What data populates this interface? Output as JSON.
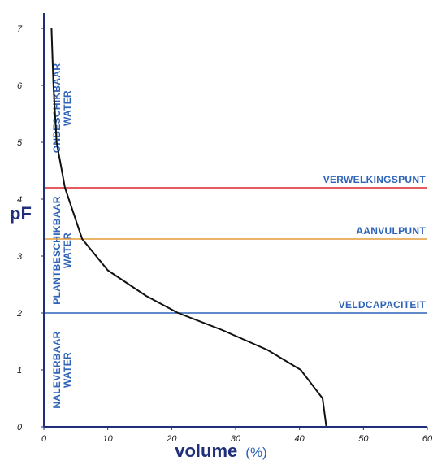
{
  "chart_data": {
    "type": "line",
    "ylabel": "pF",
    "xlabel": "volume",
    "xlabel_unit": "(%)",
    "xlim": [
      0,
      60
    ],
    "ylim": [
      0,
      7
    ],
    "xticks": [
      0,
      10,
      20,
      30,
      40,
      50,
      60
    ],
    "yticks": [
      0,
      1,
      2,
      3,
      4,
      5,
      6,
      7
    ],
    "grid": false,
    "series": [
      {
        "color": "#111111",
        "points": [
          [
            44.2,
            0.0
          ],
          [
            43.6,
            0.5
          ],
          [
            40.2,
            1.0
          ],
          [
            35.0,
            1.35
          ],
          [
            27.9,
            1.7
          ],
          [
            21.0,
            2.0
          ],
          [
            16.0,
            2.3
          ],
          [
            10.0,
            2.75
          ],
          [
            6.0,
            3.3
          ],
          [
            3.3,
            4.2
          ],
          [
            2.0,
            5.0
          ],
          [
            1.5,
            6.0
          ],
          [
            1.2,
            7.0
          ]
        ]
      }
    ],
    "reference_lines": [
      {
        "label": "VERWELKINGSPUNT",
        "y": 4.2,
        "color": "#d9262c"
      },
      {
        "label": "AANVULPUNT",
        "y": 3.3,
        "color": "#e39b3c"
      },
      {
        "label": "VELDCAPACITEIT",
        "y": 2.0,
        "color": "#2d63b8"
      }
    ],
    "zones": [
      {
        "lines": [
          "ONBESCHIKBAAR",
          "WATER"
        ],
        "y_from": 4.2,
        "y_to": 7.0
      },
      {
        "lines": [
          "PLANTBESCHIKBAAR",
          "WATER"
        ],
        "y_from": 2.0,
        "y_to": 4.2
      },
      {
        "lines": [
          "NALEVERBAAR",
          "WATER"
        ],
        "y_from": 0.0,
        "y_to": 2.0
      }
    ],
    "colors": {
      "axis": "#1f2f7a",
      "label_text": "#2d63b8",
      "title_text": "#1f2f7a"
    }
  }
}
